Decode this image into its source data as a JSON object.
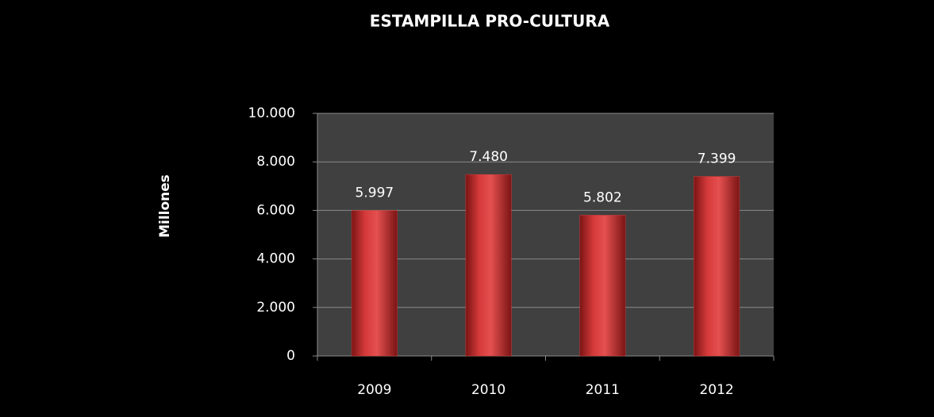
{
  "chart_data": {
    "type": "bar",
    "title": "ESTAMPILLA PRO-CULTURA",
    "y_label": "Millones",
    "categories": [
      "2009",
      "2010",
      "2011",
      "2012"
    ],
    "values": [
      5997,
      7480,
      5802,
      7399
    ],
    "value_labels": [
      "5.997",
      "7.480",
      "5.802",
      "7.399"
    ],
    "color": "#d63a3a",
    "ylim": [
      0,
      10000
    ],
    "yticks": [
      0,
      {
        "value": 2000,
        "label": "2.000"
      },
      {
        "value": 4000,
        "label": "4.000"
      },
      {
        "value": 6000,
        "label": "6.000"
      },
      {
        "value": 8000,
        "label": "8.000"
      },
      {
        "value": 10000,
        "label": "10.000"
      }
    ],
    "grid": true
  }
}
